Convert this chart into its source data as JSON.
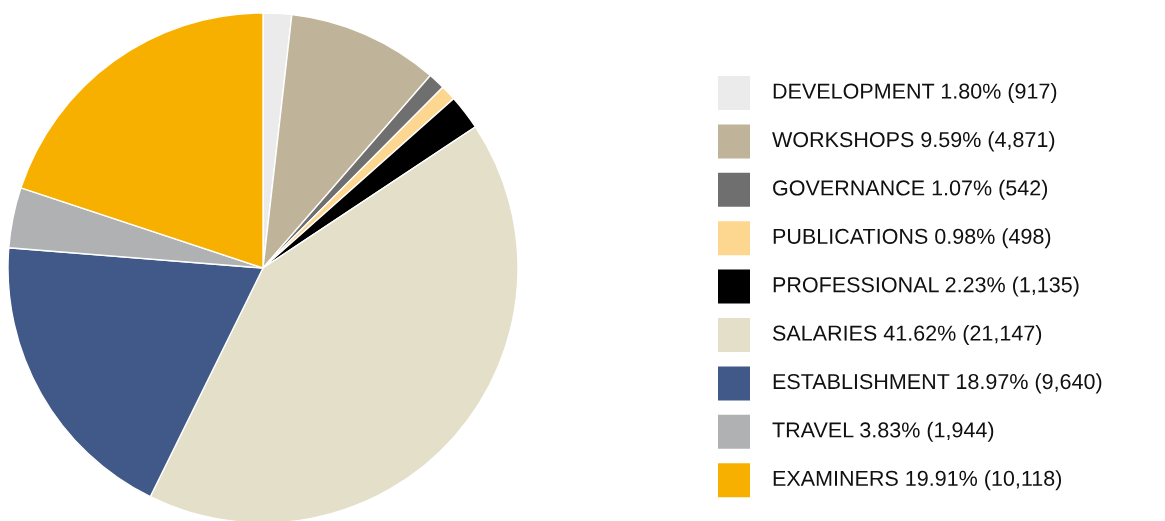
{
  "chart_data": {
    "type": "pie",
    "legend": "right",
    "categories": [
      "DEVELOPMENT",
      "WORKSHOPS",
      "GOVERNANCE",
      "PUBLICATIONS",
      "PROFESSIONAL",
      "SALARIES",
      "ESTABLISHMENT",
      "TRAVEL",
      "EXAMINERS"
    ],
    "values": [
      917,
      4871,
      542,
      498,
      1135,
      21147,
      9640,
      1944,
      10118
    ],
    "value_labels": [
      "1.80% (917)",
      "9.59% (4,871)",
      "1.07% (542)",
      "0.98% (498)",
      "2.23% (1,135)",
      "41.62% (21,147)",
      "18.97% (9,640)",
      "3.83% (1,944)",
      "19.91% (10,118)"
    ],
    "colors": [
      "#ebebeb",
      "#bfb39a",
      "#6f6f6f",
      "#fdd68f",
      "#000000",
      "#e4dfc8",
      "#415988",
      "#b0b1b3",
      "#f8b000"
    ]
  }
}
